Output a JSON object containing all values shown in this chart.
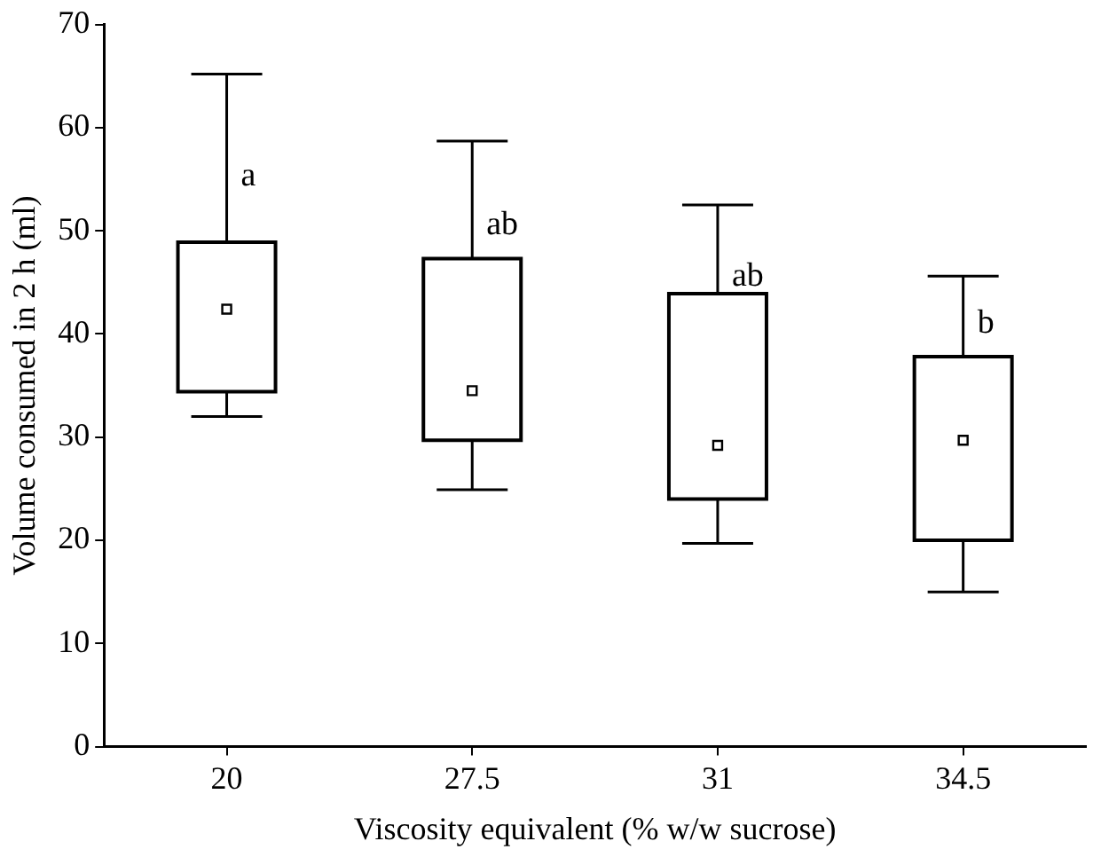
{
  "chart_data": {
    "type": "box",
    "xlabel": "Viscosity equivalent (% w/w sucrose)",
    "ylabel": "Volume consumed in 2 h (ml)",
    "categories": [
      "20",
      "27.5",
      "31",
      "34.5"
    ],
    "boxes": [
      {
        "low": 32,
        "q1": 34.4,
        "median": 42.4,
        "q3": 48.9,
        "high": 65.2
      },
      {
        "low": 24.9,
        "q1": 29.7,
        "median": 34.5,
        "q3": 47.3,
        "high": 58.7
      },
      {
        "low": 19.7,
        "q1": 24,
        "median": 29.2,
        "q3": 43.9,
        "high": 52.5
      },
      {
        "low": 15,
        "q1": 20,
        "median": 29.7,
        "q3": 37.8,
        "high": 45.6
      }
    ],
    "color": "#000000",
    "ylim": [
      0,
      70
    ],
    "yticks": [
      0,
      10,
      20,
      30,
      40,
      50,
      60,
      70
    ],
    "grid": false,
    "legend": false,
    "annotations": [
      {
        "text": "a",
        "x": "20",
        "y": 55.3
      },
      {
        "text": "ab",
        "x": "27.5",
        "y": 50.5
      },
      {
        "text": "ab",
        "x": "31",
        "y": 45.5
      },
      {
        "text": "b",
        "x": "34.5",
        "y": 41
      }
    ]
  }
}
